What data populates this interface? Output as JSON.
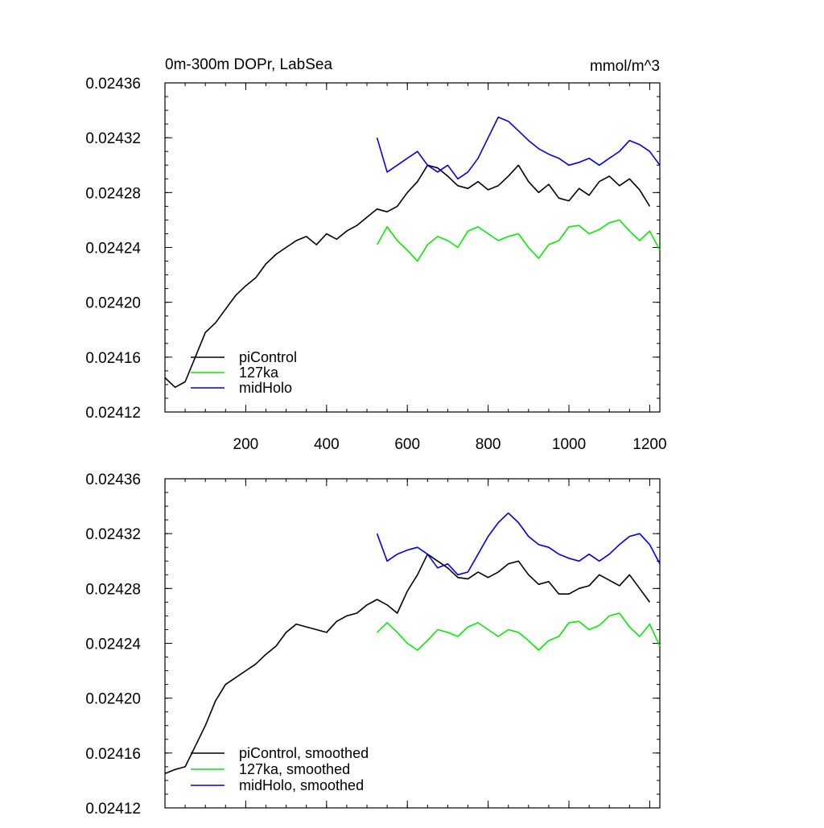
{
  "chart_data": [
    {
      "type": "line",
      "title": "0m-300m DOPr, LabSea",
      "units": "mmol/m^3",
      "xlim": [
        0,
        1225
      ],
      "ylim": [
        0.02412,
        0.02436
      ],
      "x_ticks": [
        200,
        400,
        600,
        800,
        1000,
        1200
      ],
      "x_tick_labels": [
        "200",
        "400",
        "600",
        "800",
        "1000",
        "1200"
      ],
      "y_ticks": [
        0.02412,
        0.02416,
        0.0242,
        0.02424,
        0.02428,
        0.02432,
        0.02436
      ],
      "y_tick_labels": [
        "0.02412",
        "0.02416",
        "0.02420",
        "0.02424",
        "0.02428",
        "0.02432",
        "0.02436"
      ],
      "legend_position": "bottom-left",
      "series": [
        {
          "name": "piControl",
          "color": "#000000",
          "x": [
            0,
            25,
            50,
            75,
            100,
            125,
            150,
            175,
            200,
            225,
            250,
            275,
            300,
            325,
            350,
            375,
            400,
            425,
            450,
            475,
            500,
            525,
            550,
            575,
            600,
            625,
            650,
            675,
            700,
            725,
            750,
            775,
            800,
            825,
            850,
            875,
            900,
            925,
            950,
            975,
            1000,
            1025,
            1050,
            1075,
            1100,
            1125,
            1150,
            1175,
            1200
          ],
          "y": [
            0.024145,
            0.024138,
            0.024142,
            0.02416,
            0.024178,
            0.024185,
            0.024195,
            0.024205,
            0.024212,
            0.024218,
            0.024228,
            0.024235,
            0.02424,
            0.024245,
            0.024248,
            0.024242,
            0.02425,
            0.024246,
            0.024252,
            0.024256,
            0.024262,
            0.024268,
            0.024266,
            0.02427,
            0.02428,
            0.024288,
            0.0243,
            0.024298,
            0.024292,
            0.024285,
            0.024283,
            0.024288,
            0.024282,
            0.024285,
            0.024292,
            0.0243,
            0.024288,
            0.02428,
            0.024286,
            0.024276,
            0.024274,
            0.024283,
            0.024278,
            0.024288,
            0.024292,
            0.024285,
            0.02429,
            0.024282,
            0.02427
          ]
        },
        {
          "name": "127ka",
          "color": "#00ee00",
          "x": [
            525,
            550,
            575,
            600,
            625,
            650,
            675,
            700,
            725,
            750,
            775,
            800,
            825,
            850,
            875,
            900,
            925,
            950,
            975,
            1000,
            1025,
            1050,
            1075,
            1100,
            1125,
            1150,
            1175,
            1200,
            1225
          ],
          "y": [
            0.024242,
            0.024255,
            0.024245,
            0.024238,
            0.02423,
            0.024242,
            0.024248,
            0.024245,
            0.02424,
            0.024252,
            0.024255,
            0.02425,
            0.024245,
            0.024248,
            0.02425,
            0.02424,
            0.024232,
            0.024242,
            0.024245,
            0.024255,
            0.024256,
            0.02425,
            0.024253,
            0.024258,
            0.02426,
            0.024252,
            0.024245,
            0.024252,
            0.024238
          ]
        },
        {
          "name": "midHolo",
          "color": "#0000ee",
          "x": [
            525,
            550,
            575,
            600,
            625,
            650,
            675,
            700,
            725,
            750,
            775,
            800,
            825,
            850,
            875,
            900,
            925,
            950,
            975,
            1000,
            1025,
            1050,
            1075,
            1100,
            1125,
            1150,
            1175,
            1200,
            1225
          ],
          "y": [
            0.02432,
            0.024295,
            0.0243,
            0.024305,
            0.02431,
            0.0243,
            0.024295,
            0.0243,
            0.02429,
            0.024295,
            0.024305,
            0.02432,
            0.024335,
            0.024332,
            0.024325,
            0.024318,
            0.024312,
            0.024308,
            0.024305,
            0.0243,
            0.024302,
            0.024305,
            0.0243,
            0.024305,
            0.02431,
            0.024318,
            0.024315,
            0.02431,
            0.0243
          ]
        }
      ]
    },
    {
      "type": "line",
      "xlim": [
        0,
        1225
      ],
      "ylim": [
        0.02412,
        0.02436
      ],
      "x_ticks": [
        200,
        400,
        600,
        800,
        1000,
        1200
      ],
      "y_ticks": [
        0.02412,
        0.02416,
        0.0242,
        0.02424,
        0.02428,
        0.02432,
        0.02436
      ],
      "y_tick_labels": [
        "0.02412",
        "0.02416",
        "0.02420",
        "0.02424",
        "0.02428",
        "0.02432",
        "0.02436"
      ],
      "legend_position": "bottom-left",
      "series": [
        {
          "name": "piControl, smoothed",
          "color": "#000000",
          "x": [
            0,
            25,
            50,
            75,
            100,
            125,
            150,
            175,
            200,
            225,
            250,
            275,
            300,
            325,
            350,
            375,
            400,
            425,
            450,
            475,
            500,
            525,
            550,
            575,
            600,
            625,
            650,
            675,
            700,
            725,
            750,
            775,
            800,
            825,
            850,
            875,
            900,
            925,
            950,
            975,
            1000,
            1025,
            1050,
            1075,
            1100,
            1125,
            1150,
            1175,
            1200
          ],
          "y": [
            0.024145,
            0.024148,
            0.02415,
            0.024165,
            0.02418,
            0.024198,
            0.02421,
            0.024215,
            0.02422,
            0.024225,
            0.024232,
            0.024238,
            0.024248,
            0.024254,
            0.024252,
            0.02425,
            0.024248,
            0.024256,
            0.02426,
            0.024262,
            0.024268,
            0.024272,
            0.024268,
            0.024262,
            0.024278,
            0.02429,
            0.024305,
            0.0243,
            0.024295,
            0.024288,
            0.024287,
            0.024292,
            0.024288,
            0.024292,
            0.024298,
            0.0243,
            0.02429,
            0.024283,
            0.024285,
            0.024276,
            0.024276,
            0.02428,
            0.024282,
            0.02429,
            0.024286,
            0.024282,
            0.02429,
            0.02428,
            0.02427
          ]
        },
        {
          "name": "127ka, smoothed",
          "color": "#00ee00",
          "x": [
            525,
            550,
            575,
            600,
            625,
            650,
            675,
            700,
            725,
            750,
            775,
            800,
            825,
            850,
            875,
            900,
            925,
            950,
            975,
            1000,
            1025,
            1050,
            1075,
            1100,
            1125,
            1150,
            1175,
            1200,
            1225
          ],
          "y": [
            0.024248,
            0.024255,
            0.024248,
            0.02424,
            0.024235,
            0.024242,
            0.02425,
            0.024248,
            0.024245,
            0.024252,
            0.024255,
            0.02425,
            0.024245,
            0.02425,
            0.024248,
            0.024242,
            0.024235,
            0.024242,
            0.024245,
            0.024255,
            0.024256,
            0.02425,
            0.024253,
            0.02426,
            0.024262,
            0.024252,
            0.024245,
            0.024254,
            0.024238
          ]
        },
        {
          "name": "midHolo, smoothed",
          "color": "#0000ee",
          "x": [
            525,
            550,
            575,
            600,
            625,
            650,
            675,
            700,
            725,
            750,
            775,
            800,
            825,
            850,
            875,
            900,
            925,
            950,
            975,
            1000,
            1025,
            1050,
            1075,
            1100,
            1125,
            1150,
            1175,
            1200,
            1225
          ],
          "y": [
            0.02432,
            0.0243,
            0.024305,
            0.024308,
            0.02431,
            0.024305,
            0.024295,
            0.024298,
            0.02429,
            0.024292,
            0.024305,
            0.024318,
            0.024328,
            0.024335,
            0.024328,
            0.024318,
            0.024312,
            0.02431,
            0.024305,
            0.024302,
            0.0243,
            0.024305,
            0.0243,
            0.024305,
            0.024312,
            0.024318,
            0.02432,
            0.024312,
            0.024298
          ]
        }
      ]
    }
  ]
}
